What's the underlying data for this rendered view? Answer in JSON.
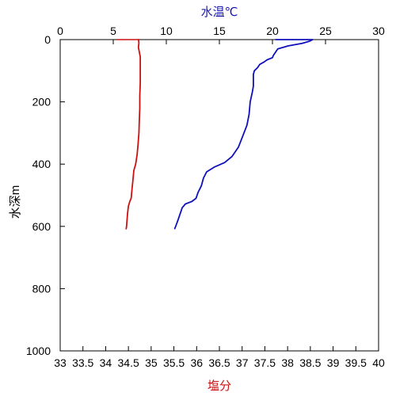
{
  "chart_data": {
    "type": "line",
    "y_axis": {
      "label": "水深m",
      "range": [
        0,
        1000
      ],
      "inverted": true,
      "ticks": [
        0,
        200,
        400,
        600,
        800,
        1000
      ]
    },
    "x_top_axis": {
      "label": "水温℃",
      "label_color": "#1a1aaa",
      "range": [
        0,
        30
      ],
      "ticks": [
        0,
        5,
        10,
        15,
        20,
        25,
        30
      ]
    },
    "x_bottom_axis": {
      "label": "塩分",
      "label_color": "#cc1111",
      "range": [
        33,
        40
      ],
      "ticks": [
        33,
        33.5,
        34,
        34.5,
        35,
        35.5,
        36,
        36.5,
        37,
        37.5,
        38,
        38.5,
        39,
        39.5,
        40
      ],
      "tick_labels": [
        "33",
        "33.5",
        "34",
        "34.5",
        "35",
        "35.5",
        "36",
        "36.5",
        "37",
        "37.5",
        "38",
        "38.5",
        "39",
        "39.5",
        "40"
      ]
    },
    "grid": false,
    "series": [
      {
        "axis": "top",
        "color": "#1010bb",
        "points": [
          [
            20.3,
            0
          ],
          [
            23.8,
            0
          ],
          [
            23.5,
            5
          ],
          [
            22.8,
            12
          ],
          [
            21.5,
            20
          ],
          [
            20.5,
            30
          ],
          [
            20.3,
            40
          ],
          [
            20.1,
            50
          ],
          [
            20.0,
            58
          ],
          [
            19.5,
            65
          ],
          [
            19.2,
            72
          ],
          [
            18.8,
            80
          ],
          [
            18.6,
            90
          ],
          [
            18.3,
            100
          ],
          [
            18.2,
            112
          ],
          [
            18.2,
            130
          ],
          [
            18.2,
            150
          ],
          [
            18.1,
            170
          ],
          [
            17.9,
            200
          ],
          [
            17.8,
            240
          ],
          [
            17.6,
            275
          ],
          [
            17.2,
            310
          ],
          [
            16.8,
            345
          ],
          [
            16.2,
            375
          ],
          [
            15.5,
            395
          ],
          [
            14.5,
            410
          ],
          [
            13.8,
            425
          ],
          [
            13.5,
            445
          ],
          [
            13.3,
            470
          ],
          [
            13.0,
            490
          ],
          [
            12.8,
            510
          ],
          [
            12.4,
            520
          ],
          [
            11.8,
            528
          ],
          [
            11.5,
            540
          ],
          [
            11.3,
            560
          ],
          [
            11.1,
            580
          ],
          [
            10.9,
            598
          ],
          [
            10.8,
            607
          ]
        ]
      },
      {
        "axis": "bottom",
        "color": "#cc1111",
        "points": [
          [
            34.72,
            0
          ],
          [
            34.73,
            10
          ],
          [
            34.72,
            25
          ],
          [
            34.74,
            40
          ],
          [
            34.76,
            55
          ],
          [
            34.76,
            80
          ],
          [
            34.76,
            110
          ],
          [
            34.76,
            140
          ],
          [
            34.75,
            180
          ],
          [
            34.75,
            220
          ],
          [
            34.74,
            260
          ],
          [
            34.73,
            300
          ],
          [
            34.71,
            340
          ],
          [
            34.69,
            370
          ],
          [
            34.66,
            400
          ],
          [
            34.62,
            420
          ],
          [
            34.6,
            450
          ],
          [
            34.58,
            480
          ],
          [
            34.56,
            510
          ],
          [
            34.53,
            520
          ],
          [
            34.5,
            535
          ],
          [
            34.48,
            560
          ],
          [
            34.47,
            580
          ],
          [
            34.46,
            600
          ],
          [
            34.45,
            608
          ]
        ]
      }
    ],
    "top_zero_segment": {
      "color": "#cc1111",
      "x_range": [
        5.3,
        7.5
      ],
      "depth": 0
    }
  }
}
